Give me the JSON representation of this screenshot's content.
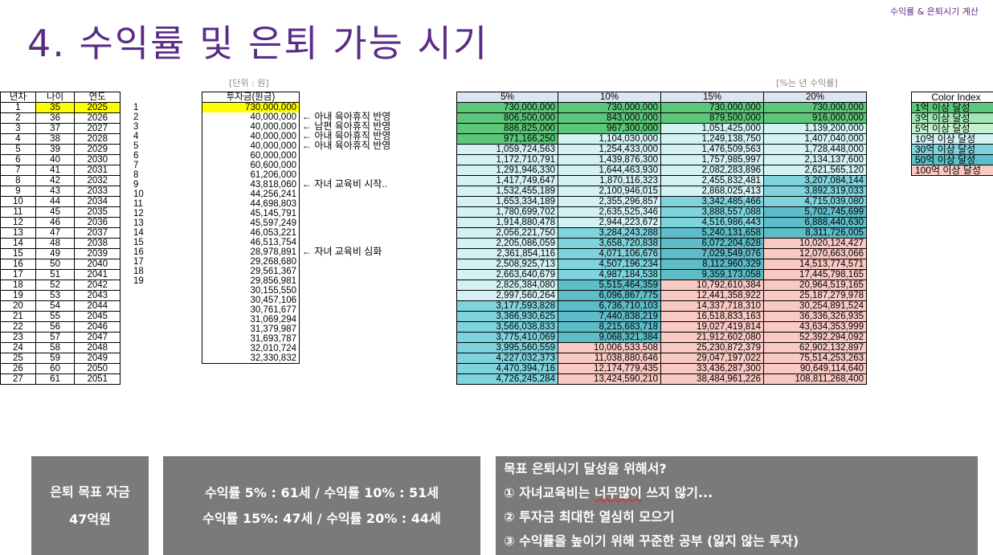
{
  "header": {
    "top_right": "수익률 & 은퇴시기 계산",
    "title": "4. 수익률 및 은퇴 가능 시기",
    "unit_note": "[단위 : 원]",
    "rate_note": "[%는 년 수익률]"
  },
  "year_table": {
    "headers": [
      "년차",
      "나이",
      "연도"
    ],
    "rows": [
      [
        "1",
        "35",
        "2025"
      ],
      [
        "2",
        "36",
        "2026"
      ],
      [
        "3",
        "37",
        "2027"
      ],
      [
        "4",
        "38",
        "2028"
      ],
      [
        "5",
        "39",
        "2029"
      ],
      [
        "6",
        "40",
        "2030"
      ],
      [
        "7",
        "41",
        "2031"
      ],
      [
        "8",
        "42",
        "2032"
      ],
      [
        "9",
        "43",
        "2033"
      ],
      [
        "10",
        "44",
        "2034"
      ],
      [
        "11",
        "45",
        "2035"
      ],
      [
        "12",
        "46",
        "2036"
      ],
      [
        "13",
        "47",
        "2037"
      ],
      [
        "14",
        "48",
        "2038"
      ],
      [
        "15",
        "49",
        "2039"
      ],
      [
        "16",
        "50",
        "2040"
      ],
      [
        "17",
        "51",
        "2041"
      ],
      [
        "18",
        "52",
        "2042"
      ],
      [
        "19",
        "53",
        "2043"
      ],
      [
        "20",
        "54",
        "2044"
      ],
      [
        "21",
        "55",
        "2045"
      ],
      [
        "22",
        "56",
        "2046"
      ],
      [
        "23",
        "57",
        "2047"
      ],
      [
        "24",
        "58",
        "2048"
      ],
      [
        "25",
        "59",
        "2049"
      ],
      [
        "26",
        "60",
        "2050"
      ],
      [
        "27",
        "61",
        "2051"
      ]
    ]
  },
  "counter": [
    "",
    "1",
    "2",
    "3",
    "4",
    "5",
    "6",
    "7",
    "8",
    "9",
    "10",
    "11",
    "12",
    "13",
    "14",
    "15",
    "16",
    "17",
    "18",
    "19"
  ],
  "investment": {
    "header": "투자금(원금)",
    "values": [
      "730,000,000",
      "40,000,000",
      "40,000,000",
      "40,000,000",
      "40,000,000",
      "60,000,000",
      "60,600,000",
      "61,206,000",
      "43,818,060",
      "44,256,241",
      "44,698,803",
      "45,145,791",
      "45,597,249",
      "46,053,221",
      "46,513,754",
      "28,978,891",
      "29,268,680",
      "29,561,367",
      "29,856,981",
      "30,155,550",
      "30,457,106",
      "30,761,677",
      "31,069,294",
      "31,379,987",
      "31,693,787",
      "32,010,724",
      "32,330,832"
    ]
  },
  "remarks": [
    "",
    "← 아내 육아휴직 반영",
    "← 남편 육아휴직 반영",
    "← 아내 육아휴직 반영",
    "← 아내 육아휴직 반영",
    "",
    "",
    "",
    "← 자녀 교육비 시작..",
    "",
    "",
    "",
    "",
    "",
    "",
    "← 자녀 교육비 심화"
  ],
  "returns": {
    "headers": [
      "5%",
      "10%",
      "15%",
      "20%"
    ],
    "rows": [
      [
        "730,000,000",
        "730,000,000",
        "730,000,000",
        "730,000,000"
      ],
      [
        "806,500,000",
        "843,000,000",
        "879,500,000",
        "916,000,000"
      ],
      [
        "886,825,000",
        "967,300,000",
        "1,051,425,000",
        "1,139,200,000"
      ],
      [
        "971,166,250",
        "1,104,030,000",
        "1,249,138,750",
        "1,407,040,000"
      ],
      [
        "1,059,724,563",
        "1,254,433,000",
        "1,476,509,563",
        "1,728,448,000"
      ],
      [
        "1,172,710,791",
        "1,439,876,300",
        "1,757,985,997",
        "2,134,137,600"
      ],
      [
        "1,291,946,330",
        "1,644,463,930",
        "2,082,283,896",
        "2,621,565,120"
      ],
      [
        "1,417,749,647",
        "1,870,116,323",
        "2,455,832,481",
        "3,207,084,144"
      ],
      [
        "1,532,455,189",
        "2,100,946,015",
        "2,868,025,413",
        "3,892,319,033"
      ],
      [
        "1,653,334,189",
        "2,355,296,857",
        "3,342,485,466",
        "4,715,039,080"
      ],
      [
        "1,780,699,702",
        "2,635,525,346",
        "3,888,557,088",
        "5,702,745,699"
      ],
      [
        "1,914,880,478",
        "2,944,223,672",
        "4,516,986,443",
        "6,888,440,630"
      ],
      [
        "2,056,221,750",
        "3,284,243,288",
        "5,240,131,658",
        "8,311,726,005"
      ],
      [
        "2,205,086,059",
        "3,658,720,838",
        "6,072,204,628",
        "10,020,124,427"
      ],
      [
        "2,361,854,116",
        "4,071,106,676",
        "7,029,549,076",
        "12,070,663,066"
      ],
      [
        "2,508,925,713",
        "4,507,196,234",
        "8,112,960,329",
        "14,513,774,571"
      ],
      [
        "2,663,640,679",
        "4,987,184,538",
        "9,359,173,058",
        "17,445,798,165"
      ],
      [
        "2,826,384,080",
        "5,515,464,359",
        "10,792,610,384",
        "20,964,519,165"
      ],
      [
        "2,997,560,264",
        "6,096,867,775",
        "12,441,358,922",
        "25,187,279,978"
      ],
      [
        "3,177,593,828",
        "6,736,710,103",
        "14,337,718,310",
        "30,254,891,524"
      ],
      [
        "3,366,930,625",
        "7,440,838,219",
        "16,518,833,163",
        "36,336,326,935"
      ],
      [
        "3,566,038,833",
        "8,215,683,718",
        "19,027,419,814",
        "43,634,353,999"
      ],
      [
        "3,775,410,069",
        "9,068,321,384",
        "21,912,602,080",
        "52,392,294,092"
      ],
      [
        "3,995,560,559",
        "10,006,533,508",
        "25,230,872,379",
        "62,902,132,897"
      ],
      [
        "4,227,032,373",
        "11,038,880,646",
        "29,047,197,022",
        "75,514,253,263"
      ],
      [
        "4,470,394,716",
        "12,174,779,435",
        "33,436,287,300",
        "90,649,114,640"
      ],
      [
        "4,726,245,284",
        "13,424,590,210",
        "38,484,961,226",
        "108,811,268,400"
      ]
    ],
    "colors": {
      "1억 이상": "#5cc77a",
      "3억 이상": "#a3e4b3",
      "5억 이상": "#c4f0cf",
      "10억 이상": "#d4f2f4",
      "30억 이상": "#7fd3dc",
      "50억 이상": "#5ebdc8",
      "100억 이상": "#f9c9c3"
    }
  },
  "legend": {
    "title": "Color Index",
    "items": [
      "1억 이상 달성",
      "3억 이상 달성",
      "5억 이상 달성",
      "10억 이상 달성",
      "30억 이상 달성",
      "50억 이상 달성",
      "100억 이상 달성"
    ]
  },
  "boxes": {
    "goal_line1": "은퇴 목표 자금",
    "goal_line2": "47억원",
    "result_line1": "수익률 5% : 61세 / 수익률 10% : 51세",
    "result_line2": "수익률 15%: 47세 / 수익률 20% : 44세",
    "plan_title": "목표 은퇴시기 달성을 위해서?",
    "plan_item1_a": "① 자녀교육비는 ",
    "plan_item1_b": "너무많이",
    "plan_item1_c": " 쓰지 않기...",
    "plan_item2": "② 투자금 최대한 열심히 모으기",
    "plan_item3": "③ 수익률을 높이기 위해 꾸준한 공부 (잃지 않는 투자)"
  }
}
